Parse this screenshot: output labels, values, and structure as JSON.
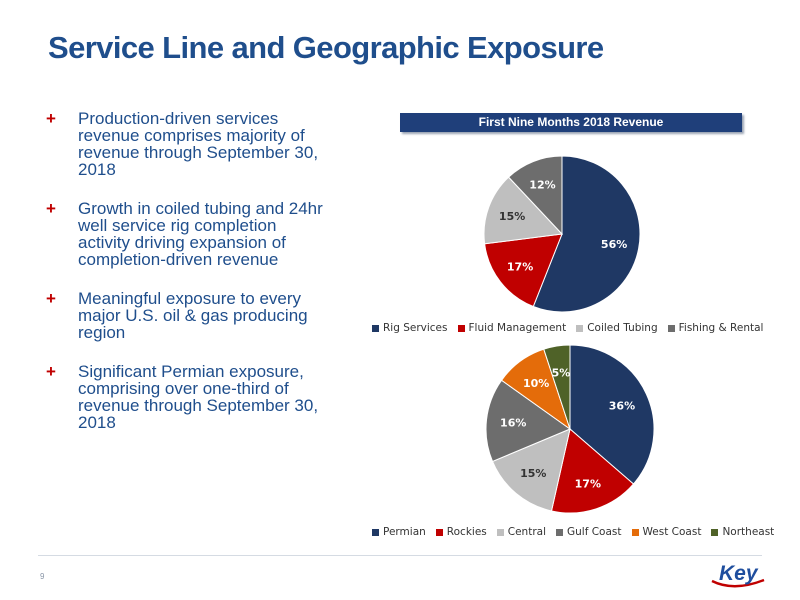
{
  "slide": {
    "title": "Service Line and Geographic Exposure",
    "page_number": "9",
    "logo_text": "Key",
    "bullet_marker": "+",
    "bullets": [
      "Production-driven services revenue comprises majority of revenue through September 30, 2018",
      "Growth in coiled tubing and 24hr well service rig completion activity driving expansion of completion-driven revenue",
      "Meaningful exposure to every major U.S. oil & gas producing region",
      "Significant Permian exposure, comprising over one-third of revenue through September 30, 2018"
    ]
  },
  "colors": {
    "title": "#1f4e8c",
    "bullet_text": "#1f4e8c",
    "bullet_marker": "#c00000",
    "header_bar": "#1f3f7a",
    "logo_blue": "#1f4e9e",
    "logo_red": "#c00000"
  },
  "chart_data": [
    {
      "type": "pie",
      "title": "First Nine Months 2018 Revenue",
      "legend_position": "bottom",
      "categories": [
        "Rig Services",
        "Fluid Management",
        "Coiled Tubing",
        "Fishing & Rental"
      ],
      "values": [
        56,
        17,
        15,
        12
      ],
      "labels": [
        "56%",
        "17%",
        "15%",
        "12%"
      ],
      "colors": [
        "#1f3864",
        "#c00000",
        "#bfbfbf",
        "#6d6d6d"
      ]
    },
    {
      "type": "pie",
      "title": "",
      "legend_position": "bottom",
      "categories": [
        "Permian",
        "Rockies",
        "Central",
        "Gulf Coast",
        "West Coast",
        "Northeast"
      ],
      "values": [
        36,
        17,
        15,
        16,
        10,
        5
      ],
      "labels": [
        "36%",
        "17%",
        "15%",
        "16%",
        "10%",
        "5%"
      ],
      "colors": [
        "#1f3864",
        "#c00000",
        "#bfbfbf",
        "#6d6d6d",
        "#e46c0a",
        "#4f6228"
      ]
    }
  ]
}
